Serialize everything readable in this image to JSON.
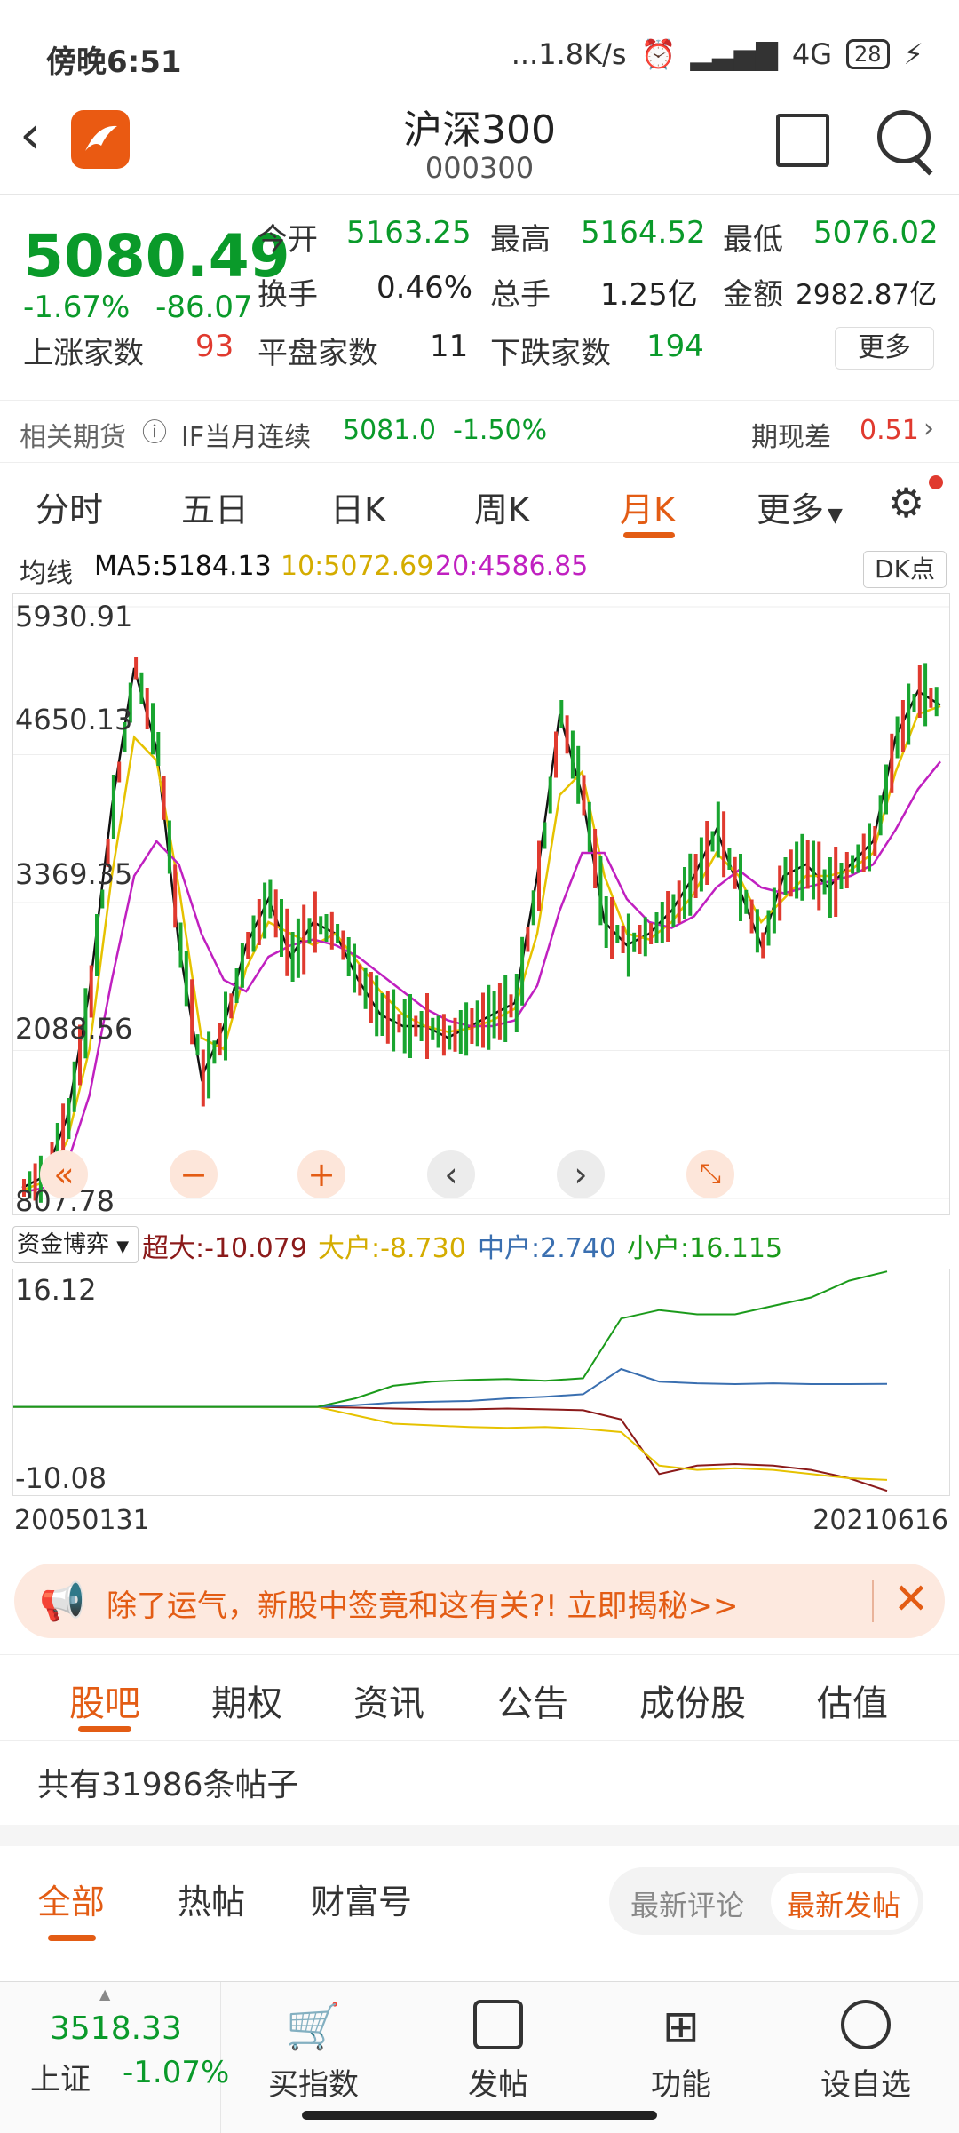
{
  "status": {
    "time": "傍晚6:51",
    "speed": "...1.8K/s",
    "network": "4G",
    "battery": "28"
  },
  "header": {
    "title": "沪深300",
    "code": "000300"
  },
  "quote": {
    "price": "5080.49",
    "change_pct": "-1.67%",
    "change_abs": "-86.07",
    "open_label": "今开",
    "open": "5163.25",
    "high_label": "最高",
    "high": "5164.52",
    "low_label": "最低",
    "low": "5076.02",
    "turnover_label": "换手",
    "turnover": "0.46%",
    "volume_label": "总手",
    "volume": "1.25亿",
    "amount_label": "金额",
    "amount": "2982.87亿",
    "up_label": "上涨家数",
    "up": "93",
    "flat_label": "平盘家数",
    "flat": "11",
    "down_label": "下跌家数",
    "down": "194",
    "more": "更多"
  },
  "futures": {
    "label": "相关期货",
    "name": "IF当月连续",
    "price": "5081.0",
    "pct": "-1.50%",
    "basis_label": "期现差",
    "basis": "0.51"
  },
  "tabs": [
    "分时",
    "五日",
    "日K",
    "周K",
    "月K",
    "更多"
  ],
  "active_tab": "月K",
  "ma": {
    "label": "均线",
    "ma5": "MA5:5184.13",
    "ma10": "10:5072.69",
    "ma20": "20:4586.85",
    "dk": "DK点"
  },
  "chart_data": [
    {
      "type": "line",
      "title": "",
      "x_start": "2005",
      "x_end": "2021",
      "y_ticks": [
        "5930.91",
        "4650.13",
        "3369.35",
        "2088.56",
        "807.78"
      ],
      "ylim": [
        807.78,
        5930.91
      ],
      "series": [
        {
          "name": "MA5",
          "color": "#111111",
          "values": [
            900,
            1000,
            1500,
            2600,
            4200,
            5400,
            4700,
            3000,
            1850,
            2300,
            3000,
            3400,
            2900,
            3200,
            3100,
            2700,
            2400,
            2300,
            2300,
            2200,
            2300,
            2400,
            2500,
            3600,
            5000,
            4300,
            3200,
            3000,
            3100,
            3300,
            3600,
            4000,
            3500,
            3000,
            3600,
            3700,
            3500,
            3700,
            3900,
            4800,
            5200,
            5080
          ]
        },
        {
          "name": "10",
          "color": "#e6c200",
          "values": [
            880,
            950,
            1300,
            2100,
            3600,
            4800,
            4600,
            3500,
            2200,
            2100,
            2800,
            3200,
            3100,
            3000,
            3100,
            2850,
            2600,
            2400,
            2300,
            2250,
            2280,
            2350,
            2450,
            3100,
            4300,
            4500,
            3600,
            3100,
            3050,
            3200,
            3450,
            3800,
            3600,
            3200,
            3400,
            3600,
            3600,
            3650,
            3800,
            4500,
            5000,
            5070
          ]
        },
        {
          "name": "20",
          "color": "#c020c0",
          "values": [
            860,
            900,
            1100,
            1700,
            2700,
            3600,
            3900,
            3700,
            3100,
            2700,
            2600,
            2900,
            3000,
            3050,
            3000,
            2900,
            2750,
            2600,
            2450,
            2350,
            2300,
            2300,
            2350,
            2650,
            3300,
            3800,
            3800,
            3400,
            3200,
            3150,
            3250,
            3500,
            3650,
            3500,
            3450,
            3500,
            3550,
            3600,
            3700,
            4000,
            4350,
            4590
          ]
        }
      ]
    },
    {
      "type": "line",
      "title": "",
      "x_start": "20050131",
      "x_end": "20210616",
      "y_ticks": [
        "16.12",
        "-10.08"
      ],
      "ylim": [
        -10.08,
        16.12
      ],
      "series": [
        {
          "name": "超大",
          "color": "#8b1a1a",
          "values": [
            0,
            0,
            0,
            0,
            0,
            0,
            0,
            0,
            0,
            -0.1,
            -0.2,
            -0.3,
            -0.3,
            -0.2,
            -0.3,
            -0.4,
            -1.5,
            -8,
            -7,
            -6.8,
            -7,
            -7.5,
            -8.5,
            -10
          ]
        },
        {
          "name": "大户",
          "color": "#e6c200",
          "values": [
            0,
            0,
            0,
            0,
            0,
            0,
            0,
            0,
            0,
            -1,
            -2,
            -2.2,
            -2.4,
            -2.5,
            -2.4,
            -2.6,
            -3,
            -7,
            -7.5,
            -7.3,
            -7.5,
            -8,
            -8.5,
            -8.7
          ]
        },
        {
          "name": "中户",
          "color": "#3a6fb0",
          "values": [
            0,
            0,
            0,
            0,
            0,
            0,
            0,
            0,
            0,
            0.2,
            0.5,
            0.6,
            0.7,
            1,
            1.2,
            1.5,
            4.5,
            3,
            2.8,
            2.7,
            2.8,
            2.7,
            2.7,
            2.74
          ]
        },
        {
          "name": "小户",
          "color": "#1a9a1a",
          "values": [
            0,
            0,
            0,
            0,
            0,
            0,
            0,
            0,
            0,
            1,
            2.5,
            3,
            3.2,
            3.3,
            3.1,
            3.4,
            10.5,
            11.5,
            11,
            11,
            12,
            13,
            15,
            16.1
          ]
        }
      ]
    }
  ],
  "fund": {
    "selector": "资金博弈",
    "super": "超大:-10.079",
    "big": "大户:-8.730",
    "mid": "中户:2.740",
    "small": "小户:16.115",
    "start": "20050131",
    "end": "20210616"
  },
  "banner": {
    "text": "除了运气，新股中签竟和这有关?! 立即揭秘>>"
  },
  "sections": [
    "股吧",
    "期权",
    "资讯",
    "公告",
    "成份股",
    "估值"
  ],
  "posts": "共有31986条帖子",
  "sub_tabs": [
    "全部",
    "热帖",
    "财富号"
  ],
  "sort": {
    "comment": "最新评论",
    "post": "最新发帖"
  },
  "bottom": {
    "index_price": "3518.33",
    "index_name": "上证",
    "index_pct": "-1.07%",
    "buy": "买指数",
    "post": "发帖",
    "func": "功能",
    "fav": "设自选"
  }
}
